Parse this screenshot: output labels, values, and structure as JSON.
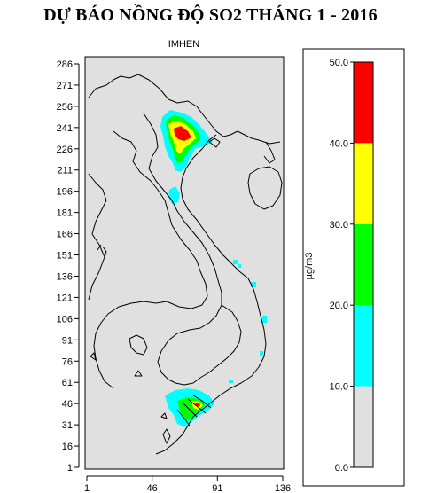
{
  "title": "DỰ BÁO NỒNG ĐỘ SO2 THÁNG 1 - 2016",
  "subtitle": "IMHEN",
  "map": {
    "y_ticks": [
      "286",
      "271",
      "256",
      "241",
      "226",
      "211",
      "196",
      "181",
      "166",
      "151",
      "136",
      "121",
      "106",
      "91",
      "76",
      "61",
      "46",
      "31",
      "16",
      "1"
    ],
    "x_ticks": [
      "1",
      "46",
      "91",
      "136"
    ],
    "background_color": "#e0e0e0",
    "boundary_color": "#000000"
  },
  "legend": {
    "unit": "µg/m3",
    "classes": [
      {
        "range": "0.0 - 10.0",
        "color": "#e0e0e0"
      },
      {
        "range": "10.0 - 20.0",
        "color": "#00ffff"
      },
      {
        "range": "20.0 - 30.0",
        "color": "#00ff00"
      },
      {
        "range": "30.0 - 40.0",
        "color": "#ffff00"
      },
      {
        "range": "40.0 - 50.0",
        "color": "#ff0000"
      }
    ],
    "tick_labels": [
      "0.0",
      "10.0",
      "20.0",
      "30.0",
      "40.0",
      "50.0"
    ]
  }
}
